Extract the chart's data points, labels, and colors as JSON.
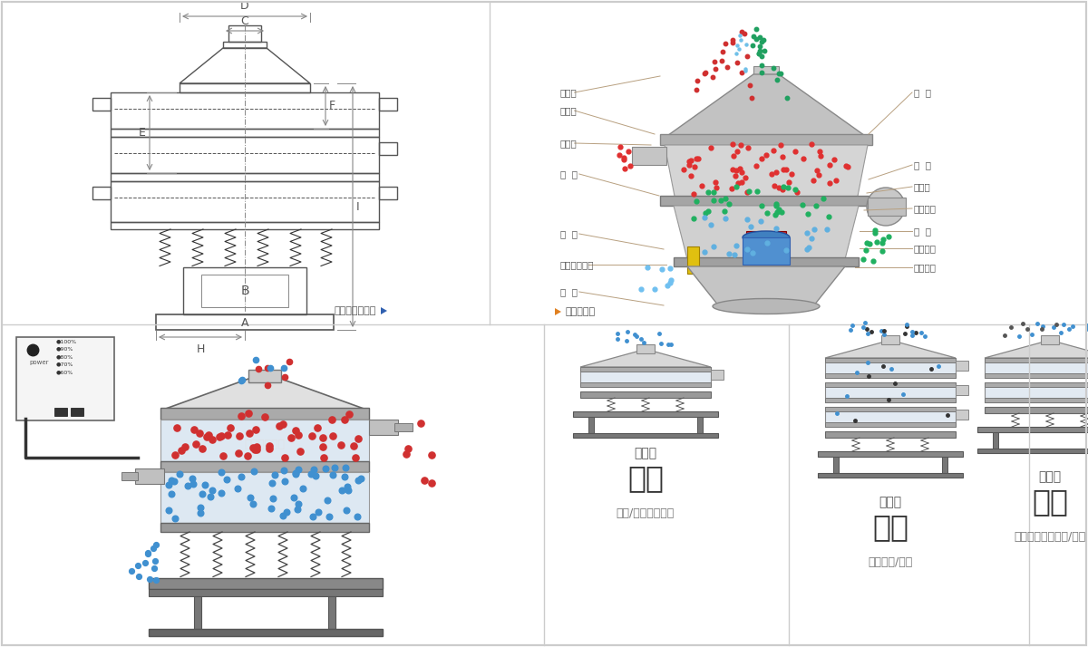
{
  "bg_color": "#ffffff",
  "border_color": "#cccccc",
  "colors": {
    "red_dot": "#e03030",
    "blue_dot": "#4090d0",
    "green_dot": "#30b050",
    "line_color": "#555555",
    "dim_line_color": "#888888",
    "label_line_color": "#b8a080",
    "section_title_color": "#333333",
    "arrow_orange": "#e08020",
    "arrow_blue": "#2060a0"
  },
  "left_labels": [
    "进料口",
    "防尘盖",
    "出料口",
    "束  环",
    "弹  簧",
    "运输固定螺栓",
    "机  座"
  ],
  "right_labels": [
    "筛  网",
    "网  架",
    "加重块",
    "上部重锤",
    "筛  盘",
    "振动电机",
    "下部重锤"
  ],
  "caption_left": "外形尺寸示意图",
  "caption_right": "结构示意图",
  "sec1_sub": "单层式",
  "sec1_title": "分级",
  "sec1_desc": "颗粒/粉末准确分级",
  "sec2_sub": "三层式",
  "sec2_title": "过滤",
  "sec2_desc": "去除异物/结块",
  "sec3_sub": "双层式",
  "sec3_title": "除杂",
  "sec3_desc": "去除液体中的颗粒/异物"
}
